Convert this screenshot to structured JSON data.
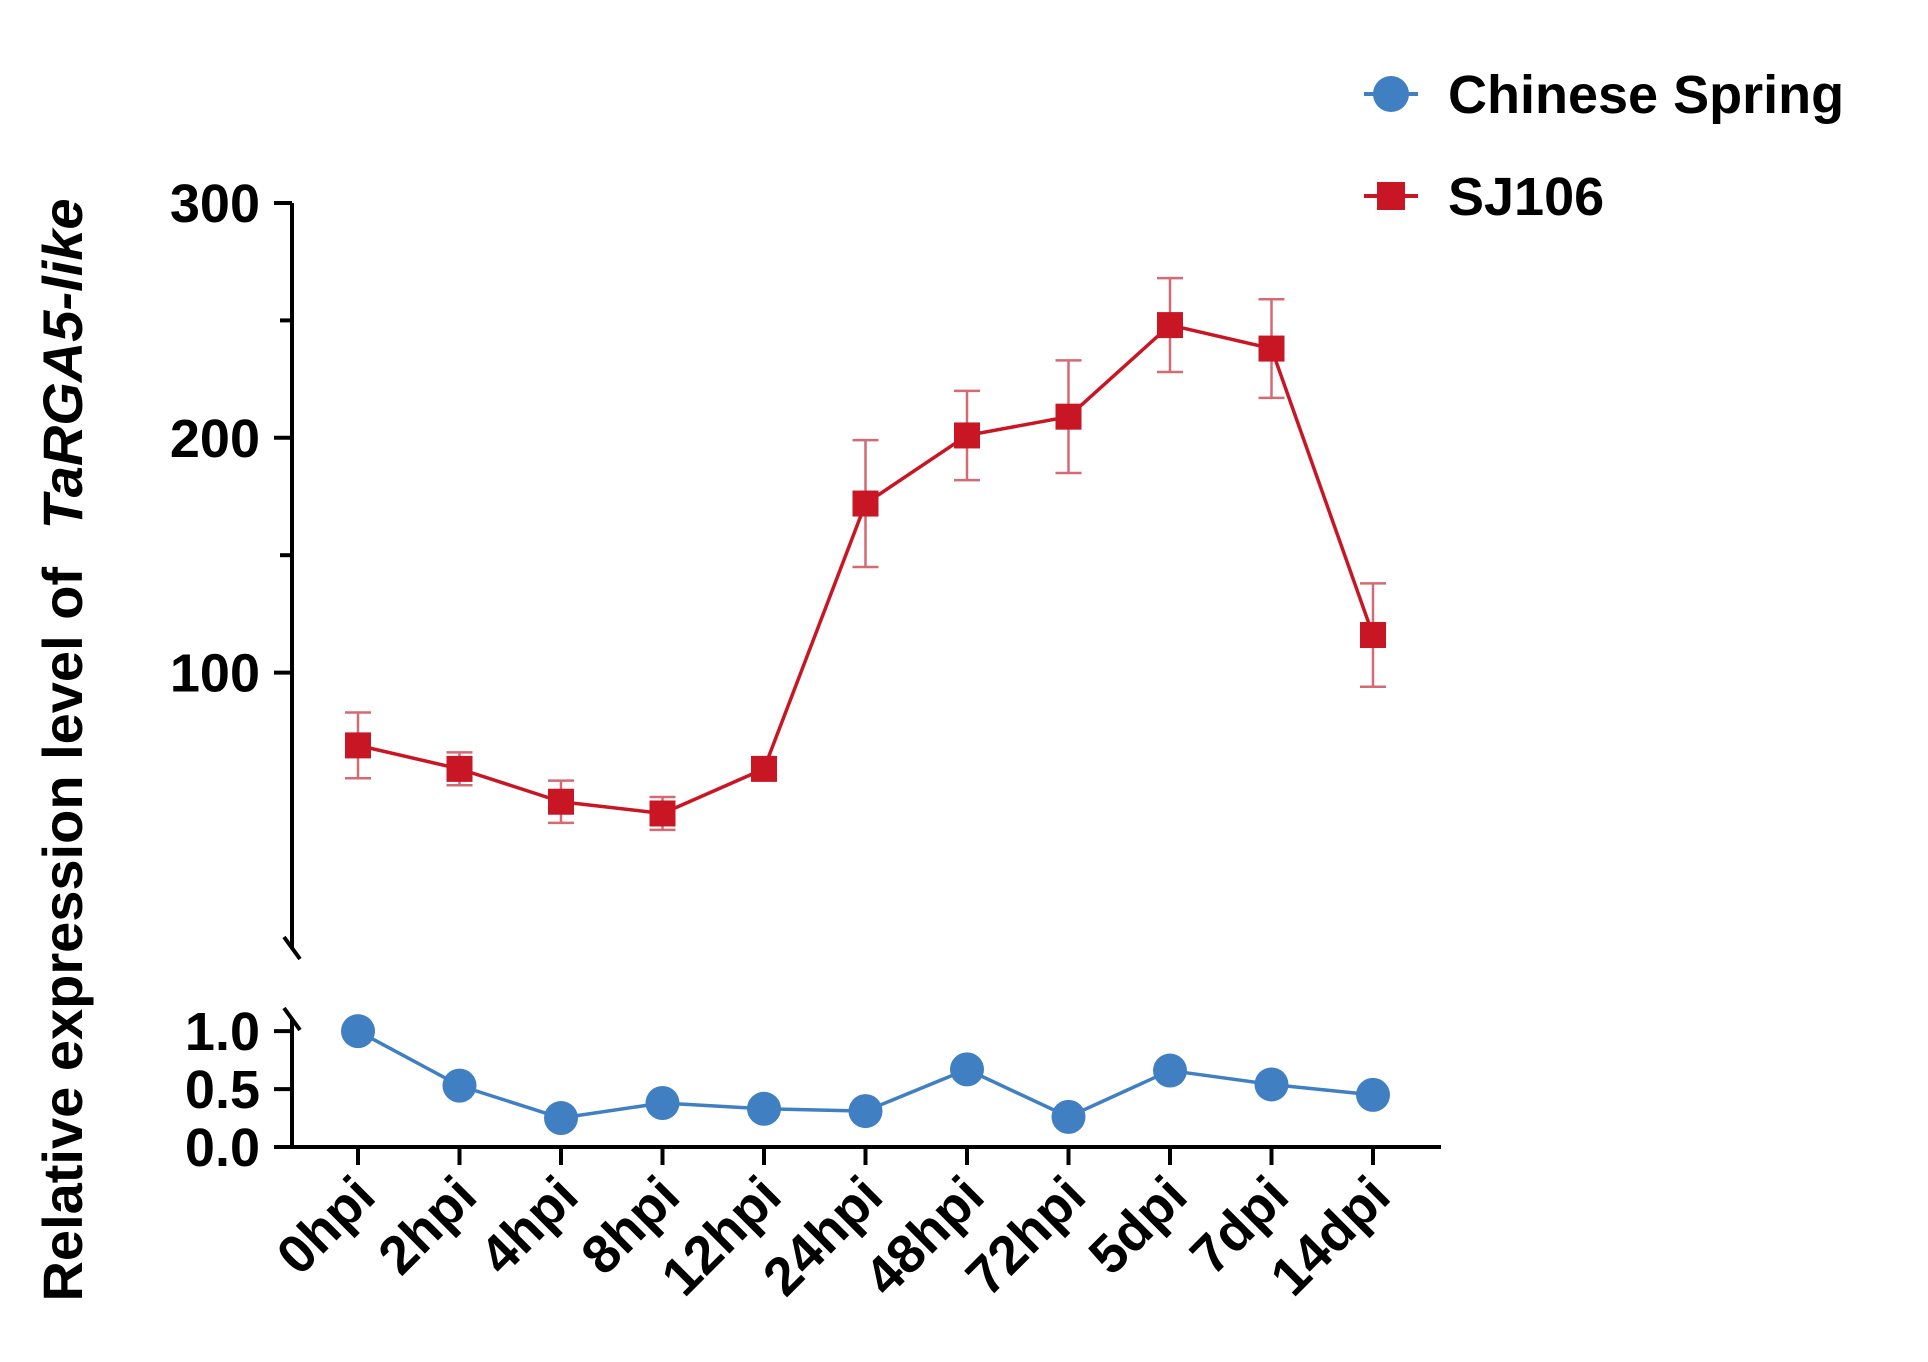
{
  "chart_data": {
    "type": "line",
    "title": "",
    "ylabel_plain": "Relative expression level of",
    "ylabel_italic": "TaRGA5-like",
    "xlabel": "",
    "categories": [
      "0hpi",
      "2hpi",
      "4hpi",
      "8hpi",
      "12hpi",
      "24hpi",
      "48hpi",
      "72hpi",
      "5dpi",
      "7dpi",
      "14dpi"
    ],
    "broken_axis": true,
    "y_upper": {
      "ylim": [
        50,
        300
      ],
      "ticks": [
        100,
        200,
        300
      ],
      "minor_ticks": [
        150,
        250
      ],
      "tick_labels": [
        "100",
        "200",
        "300"
      ]
    },
    "y_lower": {
      "ylim": [
        0,
        1.1
      ],
      "ticks": [
        0,
        0.5,
        1.0
      ],
      "tick_labels": [
        "0.0",
        "0.5",
        "1.0"
      ]
    },
    "legend_position": "top-right",
    "series": [
      {
        "name": "Chinese Spring",
        "color": "#3f7fc2",
        "marker": "circle",
        "axis": "lower",
        "values": [
          1.0,
          0.53,
          0.25,
          0.38,
          0.33,
          0.31,
          0.67,
          0.26,
          0.66,
          0.54,
          0.45
        ],
        "errors": [
          0.03,
          0.06,
          0.02,
          0.03,
          0.02,
          0.02,
          0.03,
          0.02,
          0.03,
          0.04,
          0.03
        ]
      },
      {
        "name": "SJ106",
        "color": "#c81624",
        "marker": "square",
        "axis": "upper",
        "values": [
          69,
          59,
          45,
          40,
          59,
          172,
          201,
          209,
          248,
          238,
          116
        ],
        "errors": [
          14,
          7,
          9,
          7,
          3,
          27,
          19,
          24,
          20,
          21,
          22
        ]
      }
    ]
  }
}
